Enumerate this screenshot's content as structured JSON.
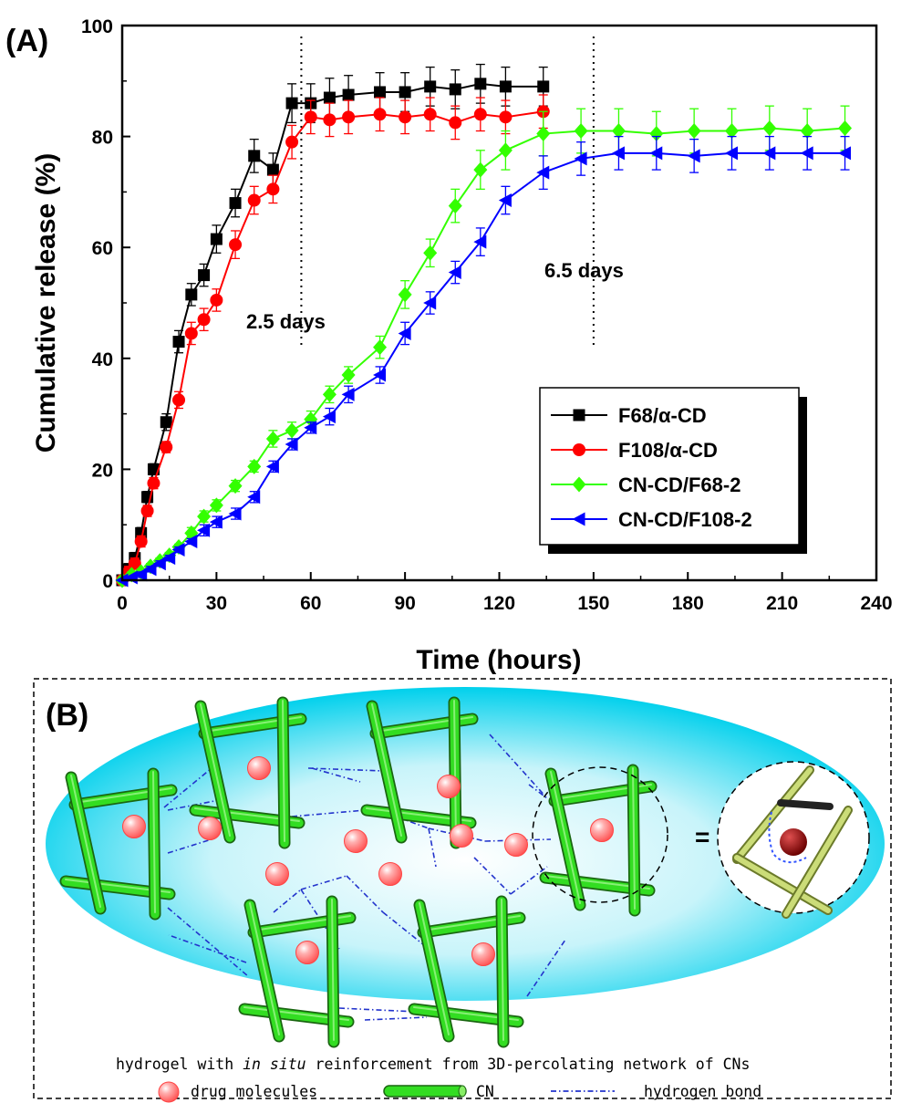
{
  "panel_a": {
    "panel_label": "(A)",
    "annotations": [
      {
        "text": "2.5 days",
        "x": 57
      },
      {
        "text": "6.5 days",
        "x": 150
      }
    ]
  },
  "panel_b": {
    "panel_label": "(B)",
    "equals_sign": "=",
    "caption_prefix": "hydrogel with ",
    "caption_italic": "in situ",
    "caption_suffix": " reinforcement from 3D-percolating network of CNs",
    "legend": {
      "drug": "drug molecules",
      "cn": "CN",
      "hbond": "hydrogen bond"
    },
    "colors": {
      "ellipse": "#00d8f0",
      "rod": "#33dd22",
      "drug": "#ff6666",
      "bond": "#2233cc"
    }
  },
  "chart_data": {
    "type": "line",
    "xlabel": "Time (hours)",
    "ylabel": "Cumulative release (%)",
    "xlim": [
      0,
      240
    ],
    "ylim": [
      0,
      100
    ],
    "xticks": [
      0,
      30,
      60,
      90,
      120,
      150,
      180,
      210,
      240
    ],
    "yticks": [
      0,
      20,
      40,
      60,
      80,
      100
    ],
    "legend_position": "lower-right",
    "series": [
      {
        "name": "F68/α-CD",
        "color": "#000000",
        "marker": "square",
        "x": [
          0,
          2,
          4,
          6,
          8,
          10,
          14,
          18,
          22,
          26,
          30,
          36,
          42,
          48,
          54,
          60,
          66,
          72,
          82,
          90,
          98,
          106,
          114,
          122,
          134
        ],
        "y": [
          0,
          2,
          4,
          8.5,
          15,
          20,
          28.5,
          43,
          51.5,
          55,
          61.5,
          68,
          76.5,
          74,
          86,
          86,
          87,
          87.5,
          88,
          88,
          89,
          88.5,
          89.5,
          89,
          89
        ],
        "err": [
          0.5,
          1,
          1,
          1,
          1,
          1,
          1.5,
          2,
          2,
          2,
          2.5,
          2.5,
          3,
          3,
          3.5,
          3.5,
          3.5,
          3.5,
          3.5,
          3.5,
          3.5,
          3.5,
          3.5,
          3.5,
          3.5
        ]
      },
      {
        "name": "F108/α-CD",
        "color": "#ff0000",
        "marker": "circle",
        "x": [
          0,
          2,
          4,
          6,
          8,
          10,
          14,
          18,
          22,
          26,
          30,
          36,
          42,
          48,
          54,
          60,
          66,
          72,
          82,
          90,
          98,
          106,
          114,
          122,
          134
        ],
        "y": [
          0,
          1.5,
          3,
          7,
          12.5,
          17.5,
          24,
          32.5,
          44.5,
          47,
          50.5,
          60.5,
          68.5,
          70.5,
          79,
          83.5,
          83,
          83.5,
          84,
          83.5,
          84,
          82.5,
          84,
          83.5,
          84.5
        ],
        "err": [
          0.5,
          1,
          1,
          1,
          1,
          1,
          1,
          1.5,
          2,
          2,
          2,
          2.5,
          2.5,
          2.5,
          3,
          3,
          3,
          3,
          3,
          3,
          3,
          3,
          3,
          3,
          3
        ]
      },
      {
        "name": "CN-CD/F68-2",
        "color": "#33ff00",
        "marker": "diamond",
        "x": [
          0,
          3,
          6,
          9,
          12,
          15,
          18,
          22,
          26,
          30,
          36,
          42,
          48,
          54,
          60,
          66,
          72,
          82,
          90,
          98,
          106,
          114,
          122,
          134,
          146,
          158,
          170,
          182,
          194,
          206,
          218,
          230
        ],
        "y": [
          0,
          1,
          1.5,
          2.5,
          3.5,
          4.5,
          6,
          8.5,
          11.5,
          13.5,
          17,
          20.5,
          25.5,
          27,
          29,
          33.5,
          37,
          42,
          51.5,
          59,
          67.5,
          74,
          77.5,
          80.5,
          81,
          81,
          80.5,
          81,
          81,
          81.5,
          81,
          81.5
        ],
        "err": [
          0.5,
          0.5,
          0.5,
          0.5,
          0.5,
          0.5,
          0.5,
          1,
          1,
          1,
          1,
          1,
          1.5,
          1.5,
          1.5,
          1.5,
          1.5,
          2,
          2.5,
          2.5,
          3,
          3.5,
          3.5,
          4,
          4,
          4,
          4,
          4,
          4,
          4,
          4,
          4
        ]
      },
      {
        "name": "CN-CD/F108-2",
        "color": "#0000ff",
        "marker": "triangle-left",
        "x": [
          0,
          3,
          6,
          9,
          12,
          15,
          18,
          22,
          26,
          30,
          36,
          42,
          48,
          54,
          60,
          66,
          72,
          82,
          90,
          98,
          106,
          114,
          122,
          134,
          146,
          158,
          170,
          182,
          194,
          206,
          218,
          230
        ],
        "y": [
          0,
          0.5,
          1,
          2,
          3,
          4,
          5.5,
          7,
          9,
          10.5,
          12,
          15,
          20.5,
          24.5,
          27.5,
          29.5,
          33.5,
          37,
          44.5,
          50,
          55.5,
          61,
          68.5,
          73.5,
          76,
          77,
          77,
          76.5,
          77,
          77,
          77,
          77
        ],
        "err": [
          0.3,
          0.3,
          0.5,
          0.5,
          0.5,
          0.5,
          0.5,
          0.5,
          1,
          1,
          1,
          1,
          1,
          1,
          1,
          1.5,
          1.5,
          1.5,
          2,
          2,
          2,
          2.5,
          2.5,
          3,
          3,
          3,
          3,
          3,
          3,
          3,
          3,
          3
        ]
      }
    ]
  }
}
